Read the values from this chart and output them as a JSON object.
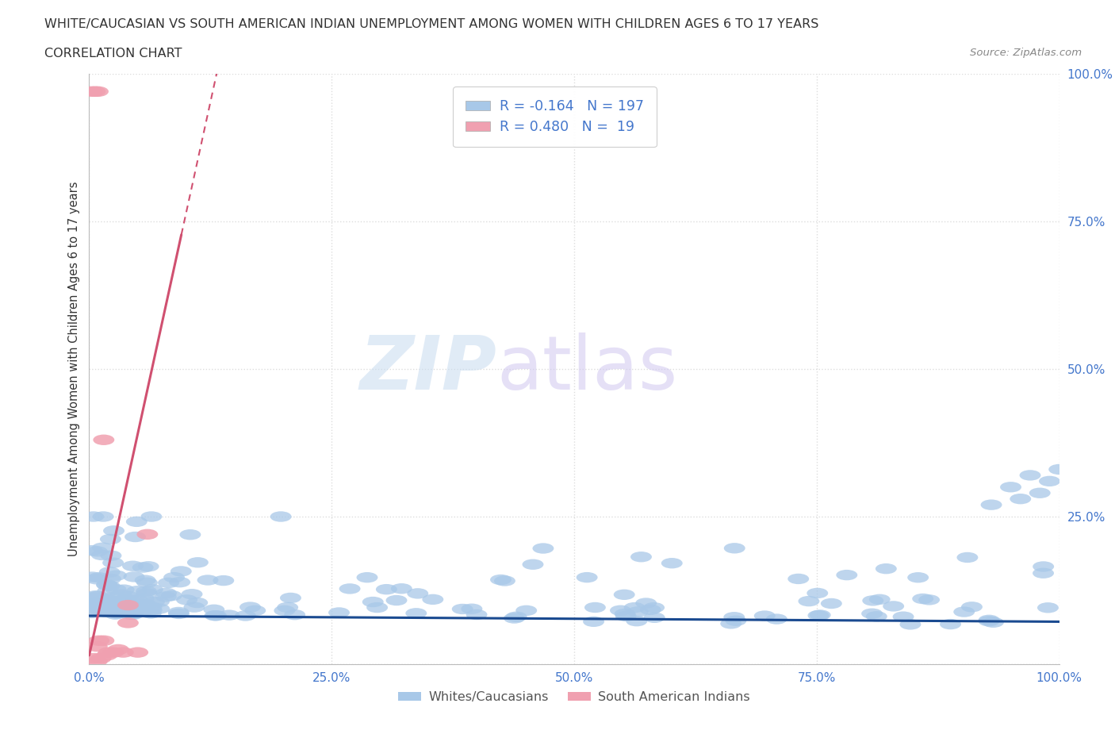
{
  "title": "WHITE/CAUCASIAN VS SOUTH AMERICAN INDIAN UNEMPLOYMENT AMONG WOMEN WITH CHILDREN AGES 6 TO 17 YEARS",
  "subtitle": "CORRELATION CHART",
  "source": "Source: ZipAtlas.com",
  "ylabel": "Unemployment Among Women with Children Ages 6 to 17 years",
  "blue_R": -0.164,
  "blue_N": 197,
  "pink_R": 0.48,
  "pink_N": 19,
  "blue_color": "#A8C8E8",
  "pink_color": "#F0A0B0",
  "blue_line_color": "#1A4A90",
  "pink_line_color": "#D05070",
  "watermark_zip": "ZIP",
  "watermark_atlas": "atlas",
  "legend_label_blue": "Whites/Caucasians",
  "legend_label_pink": "South American Indians",
  "background_color": "#FFFFFF",
  "grid_color": "#CCCCCC",
  "tick_color": "#4477CC",
  "title_color": "#333333",
  "ylabel_color": "#333333",
  "source_color": "#888888"
}
